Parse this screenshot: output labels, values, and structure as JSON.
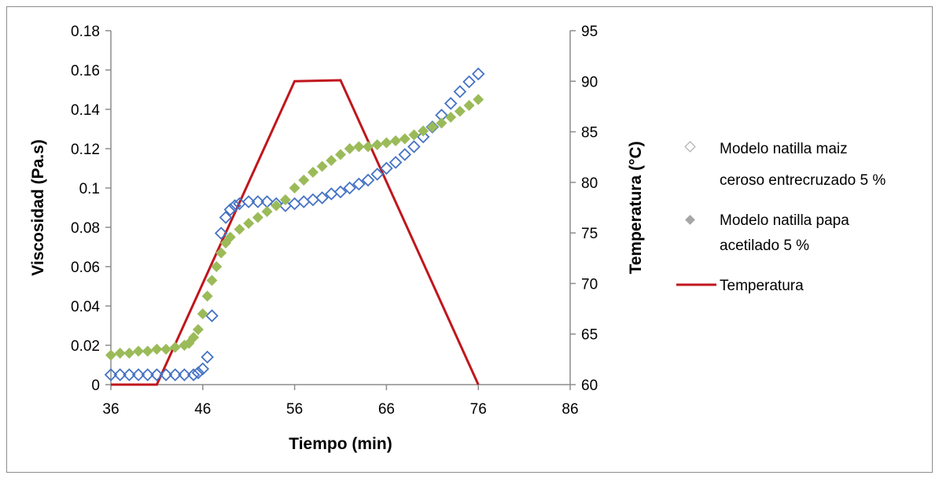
{
  "chart_data": {
    "type": "scatter",
    "title": "",
    "xlabel": "Tiempo (min)",
    "ylabel": "Viscosidad (Pa.s)",
    "y2label": "Temperatura (°C)",
    "xlim": [
      36,
      86
    ],
    "ylim": [
      0,
      0.18
    ],
    "y2lim": [
      60,
      95
    ],
    "x_ticks": [
      "36",
      "46",
      "56",
      "66",
      "76",
      "86"
    ],
    "y_ticks": [
      "0",
      "0.02",
      "0.04",
      "0.06",
      "0.08",
      "0.1",
      "0.12",
      "0.14",
      "0.16",
      "0.18"
    ],
    "y2_ticks": [
      "60",
      "65",
      "70",
      "75",
      "80",
      "85",
      "90",
      "95"
    ],
    "grid": false,
    "legend_position": "right",
    "legend": [
      {
        "lines": [
          "Modelo natilla maiz",
          "ceroso entrecruzado 5 %"
        ]
      },
      {
        "lines": [
          "Modelo natilla papa",
          "acetilado 5 %"
        ]
      },
      {
        "lines": [
          "Temperatura"
        ]
      }
    ],
    "series": [
      {
        "name": "Modelo natilla maiz ceroso entrecruzado 5 %",
        "axis": "left",
        "marker": "open-diamond",
        "color": "#4472c4",
        "x": [
          36,
          37,
          38,
          39,
          40,
          41,
          42,
          43,
          44,
          45,
          45.5,
          46,
          46.5,
          47,
          48,
          48.5,
          49,
          49.5,
          50,
          51,
          52,
          53,
          54,
          55,
          56,
          57,
          58,
          59,
          60,
          61,
          62,
          63,
          64,
          65,
          66,
          67,
          68,
          69,
          70,
          71,
          72,
          73,
          74,
          75,
          76
        ],
        "y": [
          0.005,
          0.005,
          0.005,
          0.005,
          0.005,
          0.005,
          0.005,
          0.005,
          0.005,
          0.005,
          0.006,
          0.008,
          0.014,
          0.035,
          0.077,
          0.085,
          0.089,
          0.091,
          0.092,
          0.093,
          0.093,
          0.093,
          0.092,
          0.091,
          0.092,
          0.093,
          0.094,
          0.095,
          0.097,
          0.098,
          0.1,
          0.102,
          0.104,
          0.107,
          0.11,
          0.113,
          0.117,
          0.121,
          0.126,
          0.131,
          0.137,
          0.143,
          0.149,
          0.154,
          0.158
        ]
      },
      {
        "name": "Modelo natilla papa acetilado 5 %",
        "axis": "left",
        "marker": "filled-diamond",
        "color": "#9bbb59",
        "x": [
          36,
          37,
          38,
          39,
          40,
          41,
          42,
          43,
          44,
          44.5,
          45,
          45.5,
          46,
          46.5,
          47,
          47.5,
          48,
          48.5,
          49,
          50,
          51,
          52,
          53,
          54,
          55,
          56,
          57,
          58,
          59,
          60,
          61,
          62,
          63,
          64,
          65,
          66,
          67,
          68,
          69,
          70,
          71,
          72,
          73,
          74,
          75,
          76
        ],
        "y": [
          0.015,
          0.016,
          0.016,
          0.017,
          0.017,
          0.018,
          0.018,
          0.019,
          0.02,
          0.021,
          0.024,
          0.028,
          0.036,
          0.045,
          0.053,
          0.06,
          0.067,
          0.072,
          0.075,
          0.079,
          0.082,
          0.085,
          0.088,
          0.091,
          0.094,
          0.1,
          0.104,
          0.108,
          0.111,
          0.114,
          0.117,
          0.12,
          0.121,
          0.121,
          0.122,
          0.123,
          0.124,
          0.125,
          0.127,
          0.129,
          0.131,
          0.133,
          0.136,
          0.139,
          0.142,
          0.145
        ]
      },
      {
        "name": "Temperatura",
        "axis": "right",
        "type": "line",
        "color": "#c0161d",
        "x": [
          36,
          41,
          56,
          61,
          76
        ],
        "y": [
          60,
          60,
          90,
          90.1,
          60
        ]
      }
    ]
  }
}
